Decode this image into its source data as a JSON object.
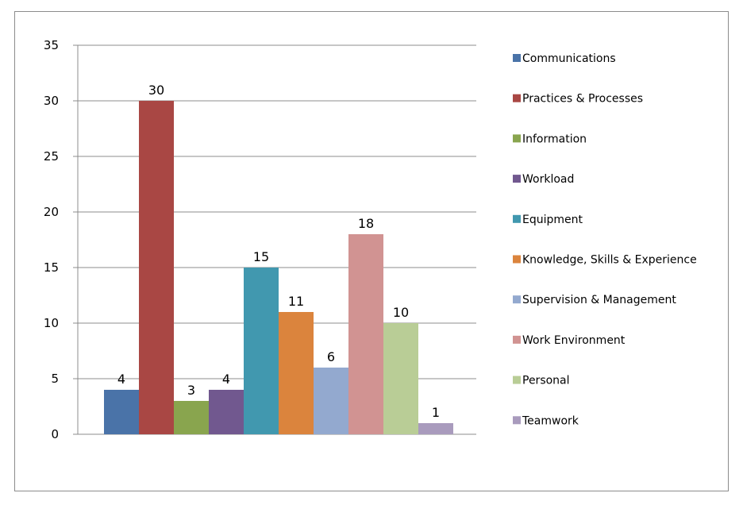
{
  "chart_data": {
    "type": "bar",
    "categories": [
      "Communications",
      "Practices & Processes",
      "Information",
      "Workload",
      "Equipment",
      "Knowledge, Skills & Experience",
      "Supervision & Management",
      "Work Environment",
      "Personal",
      "Teamwork"
    ],
    "values": [
      4,
      30,
      3,
      4,
      15,
      11,
      6,
      18,
      10,
      1
    ],
    "colors": [
      "#4A73A8",
      "#A94744",
      "#89A54E",
      "#71588F",
      "#4198AF",
      "#DB843D",
      "#93A9CF",
      "#D19392",
      "#B9CD96",
      "#A99BBD"
    ],
    "ylim": [
      0,
      35
    ],
    "yticks": [
      0,
      5,
      10,
      15,
      20,
      25,
      30,
      35
    ],
    "grid": true,
    "legend": "right",
    "data_labels": true
  }
}
